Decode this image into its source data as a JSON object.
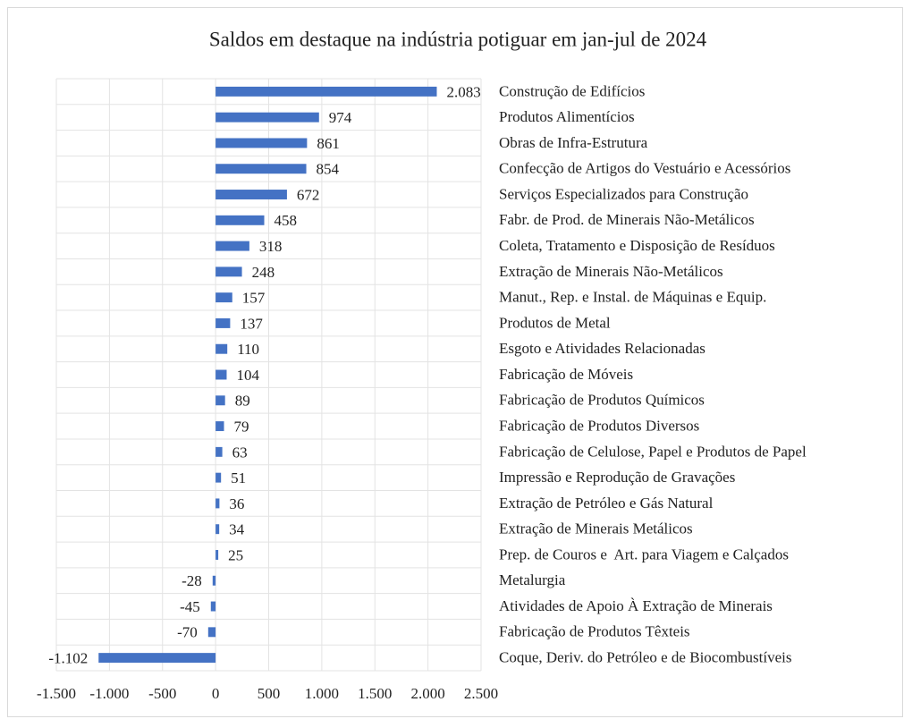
{
  "chart_data": {
    "type": "bar",
    "orientation": "horizontal",
    "title": "Saldos em destaque na indústria potiguar em jan-jul de 2024",
    "categories": [
      "Construção de Edifícios",
      "Produtos Alimentícios",
      "Obras de Infra-Estrutura",
      "Confecção de Artigos do Vestuário e Acessórios",
      "Serviços Especializados para Construção",
      "Fabr. de Prod. de Minerais Não-Metálicos",
      "Coleta, Tratamento e Disposição de Resíduos",
      "Extração de Minerais Não-Metálicos",
      "Manut., Rep. e Instal. de Máquinas e Equip.",
      "Produtos de Metal",
      "Esgoto e Atividades Relacionadas",
      "Fabricação de Móveis",
      "Fabricação de Produtos Químicos",
      "Fabricação de Produtos Diversos",
      "Fabricação de Celulose, Papel e Produtos de Papel",
      "Impressão e Reprodução de Gravações",
      "Extração de Petróleo e Gás Natural",
      "Extração de Minerais Metálicos",
      "Prep. de Couros e  Art. para Viagem e Calçados",
      "Metalurgia",
      "Atividades de Apoio À Extração de Minerais",
      "Fabricação de Produtos Têxteis",
      "Coque, Deriv. do Petróleo e de Biocombustíveis"
    ],
    "values": [
      2083,
      974,
      861,
      854,
      672,
      458,
      318,
      248,
      157,
      137,
      110,
      104,
      89,
      79,
      63,
      51,
      36,
      34,
      25,
      -28,
      -45,
      -70,
      -1102
    ],
    "value_labels": [
      "2.083",
      "974",
      "861",
      "854",
      "672",
      "458",
      "318",
      "248",
      "157",
      "137",
      "110",
      "104",
      "89",
      "79",
      "63",
      "51",
      "36",
      "34",
      "25",
      "-28",
      "-45",
      "-70",
      "-1.102"
    ],
    "color": "#4472c4",
    "xlim": [
      -1500,
      2500
    ],
    "xticks": [
      {
        "value": -1500,
        "label": "-1.500"
      },
      {
        "value": -1000,
        "label": "-1.000"
      },
      -500,
      0,
      500,
      {
        "value": 1000,
        "label": "1.000"
      },
      {
        "value": 1500,
        "label": "1.500"
      },
      {
        "value": 2000,
        "label": "2.000"
      },
      {
        "value": 2500,
        "label": "2.500"
      }
    ],
    "grid": true
  }
}
